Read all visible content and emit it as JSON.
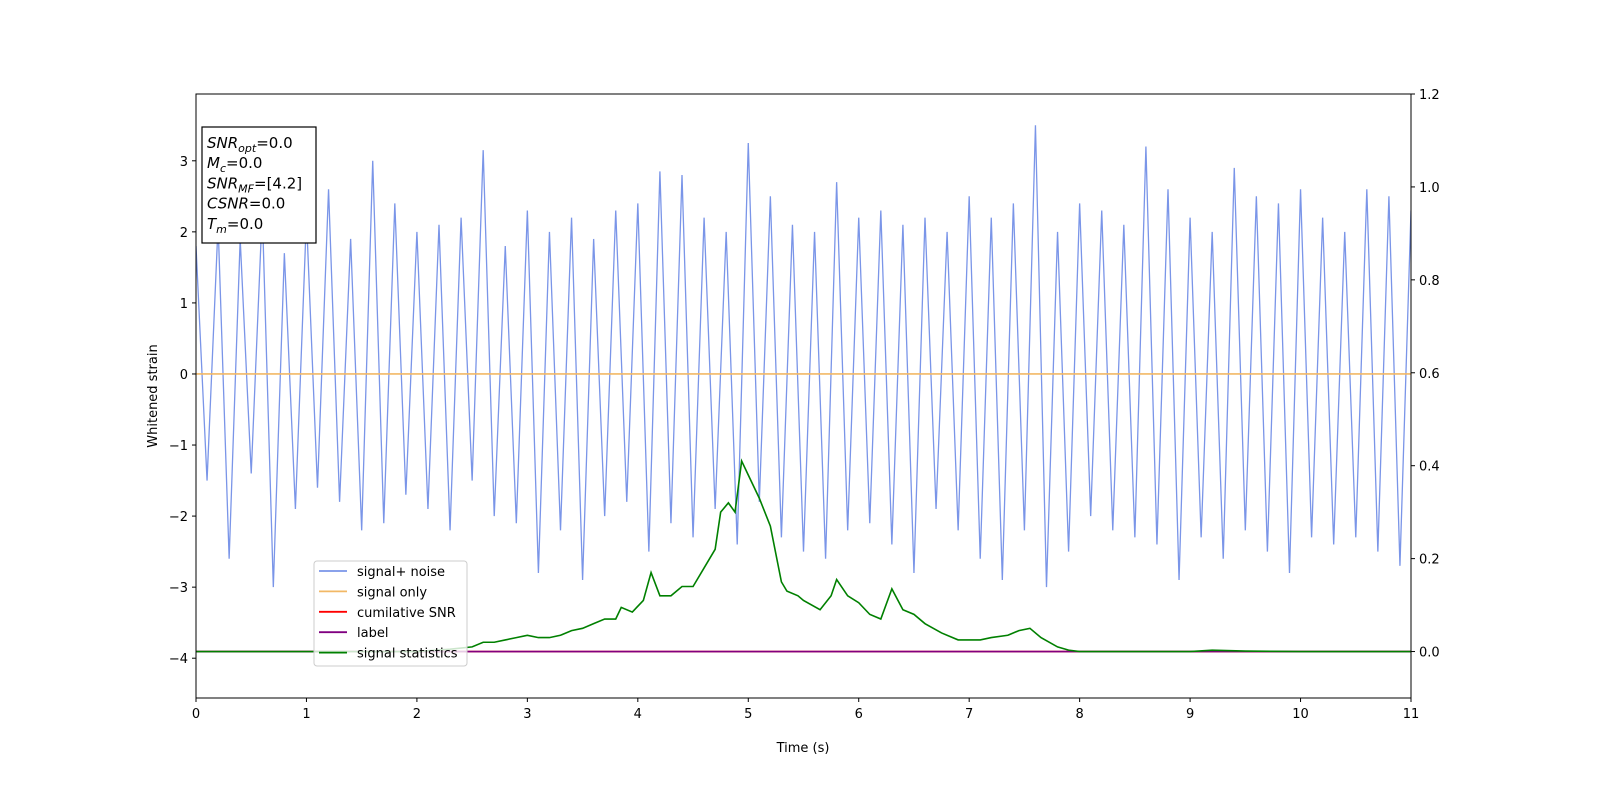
{
  "chart_data": {
    "type": "line",
    "xlabel": "Time (s)",
    "ylabel": "Whitened strain",
    "xlim": [
      0,
      11
    ],
    "xticks": [
      0,
      1,
      2,
      3,
      4,
      5,
      6,
      7,
      8,
      9,
      10,
      11
    ],
    "ylim": [
      -4.56,
      3.94
    ],
    "yticks": [
      {
        "value": -4,
        "label": "−4"
      },
      {
        "value": -3,
        "label": "−3"
      },
      {
        "value": -2,
        "label": "−2"
      },
      {
        "value": -1,
        "label": "−1"
      },
      0,
      1,
      2,
      3
    ],
    "y2lim": [
      -0.1,
      1.2
    ],
    "y2ticks": [
      {
        "value": 0,
        "label": "0.0"
      },
      {
        "value": 0.2,
        "label": "0.2"
      },
      {
        "value": 0.4,
        "label": "0.4"
      },
      {
        "value": 0.6,
        "label": "0.6"
      },
      {
        "value": 0.8,
        "label": "0.8"
      },
      {
        "value": 1,
        "label": "1.0"
      },
      {
        "value": 1.2,
        "label": "1.2"
      }
    ],
    "legend": "lower left",
    "annotations": [
      {
        "main": "SNR",
        "sub": "opt",
        "rest": "=0.0"
      },
      {
        "main": "M",
        "sub": "c",
        "rest": "=0.0"
      },
      {
        "main": "SNR",
        "sub": "MF",
        "rest": "=[4.2]"
      },
      {
        "main": "CSNR",
        "sub": "",
        "rest": "=0.0"
      },
      {
        "main": "T",
        "sub": "m",
        "rest": "=0.0"
      }
    ],
    "series": [
      {
        "name": "signal+ noise",
        "color": "#7a95e8",
        "axis": "y",
        "x": [
          0,
          0.1,
          0.2,
          0.3,
          0.4,
          0.5,
          0.6,
          0.7,
          0.8,
          0.9,
          1,
          1.1,
          1.2,
          1.3,
          1.4,
          1.5,
          1.6,
          1.7,
          1.8,
          1.9,
          2,
          2.1,
          2.2,
          2.3,
          2.4,
          2.5,
          2.6,
          2.7,
          2.8,
          2.9,
          3,
          3.1,
          3.2,
          3.3,
          3.4,
          3.5,
          3.6,
          3.7,
          3.8,
          3.9,
          4,
          4.1,
          4.2,
          4.3,
          4.4,
          4.5,
          4.6,
          4.7,
          4.8,
          4.9,
          5,
          5.1,
          5.2,
          5.3,
          5.4,
          5.5,
          5.6,
          5.7,
          5.8,
          5.9,
          6,
          6.1,
          6.2,
          6.3,
          6.4,
          6.5,
          6.6,
          6.7,
          6.8,
          6.9,
          7,
          7.1,
          7.2,
          7.3,
          7.4,
          7.5,
          7.6,
          7.7,
          7.8,
          7.9,
          8,
          8.1,
          8.2,
          8.3,
          8.4,
          8.5,
          8.6,
          8.7,
          8.8,
          8.9,
          9,
          9.1,
          9.2,
          9.3,
          9.4,
          9.5,
          9.6,
          9.7,
          9.8,
          9.9,
          10,
          10.1,
          10.2,
          10.3,
          10.4,
          10.5,
          10.6,
          10.7,
          10.8,
          10.9,
          11
        ],
        "values": [
          1.8,
          -1.5,
          2.1,
          -2.6,
          1.9,
          -1.4,
          2.3,
          -3.0,
          1.7,
          -1.9,
          2.2,
          -1.6,
          2.6,
          -1.8,
          1.9,
          -2.2,
          3.0,
          -2.1,
          2.4,
          -1.7,
          2.0,
          -1.9,
          2.1,
          -2.2,
          2.2,
          -1.5,
          3.15,
          -2.0,
          1.8,
          -2.1,
          2.3,
          -2.8,
          2.0,
          -2.2,
          2.2,
          -2.9,
          1.9,
          -2.0,
          2.3,
          -1.8,
          2.4,
          -2.5,
          2.85,
          -2.1,
          2.8,
          -2.3,
          2.2,
          -1.9,
          2.0,
          -2.4,
          3.25,
          -1.8,
          2.5,
          -2.3,
          2.1,
          -2.5,
          2.0,
          -2.6,
          2.7,
          -2.2,
          2.2,
          -2.1,
          2.3,
          -2.4,
          2.1,
          -2.8,
          2.2,
          -1.9,
          2.0,
          -2.2,
          2.5,
          -2.6,
          2.2,
          -2.9,
          2.4,
          -2.2,
          3.5,
          -3.0,
          2.0,
          -2.5,
          2.4,
          -2.0,
          2.3,
          -2.2,
          2.1,
          -2.3,
          3.2,
          -2.4,
          2.6,
          -2.9,
          2.2,
          -2.3,
          2.0,
          -2.6,
          2.9,
          -2.2,
          2.5,
          -2.5,
          2.4,
          -2.8,
          2.6,
          -2.3,
          2.2,
          -2.4,
          2.0,
          -2.3,
          2.6,
          -2.5,
          2.5,
          -2.7,
          2.3
        ]
      },
      {
        "name": "signal only",
        "color": "#f2b866",
        "axis": "y",
        "x": [
          0,
          11
        ],
        "values": [
          0,
          0
        ]
      },
      {
        "name": "cumilative SNR",
        "color": "red",
        "axis": "y2",
        "x": [
          0,
          11
        ],
        "values": [
          0,
          0
        ]
      },
      {
        "name": "label",
        "color": "purple",
        "axis": "y2",
        "x": [
          0,
          11
        ],
        "values": [
          0,
          0
        ]
      },
      {
        "name": "signal statistics",
        "color": "green",
        "axis": "y2",
        "x": [
          0,
          0.5,
          1,
          1.5,
          2,
          2.3,
          2.5,
          2.6,
          2.7,
          2.8,
          2.9,
          3,
          3.1,
          3.2,
          3.3,
          3.4,
          3.5,
          3.6,
          3.7,
          3.8,
          3.85,
          3.95,
          4.05,
          4.12,
          4.2,
          4.3,
          4.4,
          4.5,
          4.6,
          4.7,
          4.75,
          4.82,
          4.88,
          4.94,
          5,
          5.1,
          5.2,
          5.3,
          5.35,
          5.45,
          5.5,
          5.65,
          5.75,
          5.8,
          5.9,
          6,
          6.1,
          6.2,
          6.3,
          6.4,
          6.5,
          6.6,
          6.75,
          6.9,
          7.1,
          7.2,
          7.35,
          7.45,
          7.55,
          7.65,
          7.8,
          7.9,
          8,
          9,
          9.2,
          9.5,
          10,
          11
        ],
        "values": [
          0,
          0,
          0,
          0,
          0,
          0.005,
          0.01,
          0.02,
          0.02,
          0.025,
          0.03,
          0.035,
          0.03,
          0.03,
          0.035,
          0.045,
          0.05,
          0.06,
          0.07,
          0.07,
          0.095,
          0.085,
          0.11,
          0.17,
          0.12,
          0.12,
          0.14,
          0.14,
          0.18,
          0.22,
          0.3,
          0.32,
          0.3,
          0.41,
          0.38,
          0.33,
          0.27,
          0.15,
          0.13,
          0.12,
          0.11,
          0.09,
          0.12,
          0.155,
          0.12,
          0.105,
          0.08,
          0.07,
          0.135,
          0.09,
          0.08,
          0.06,
          0.04,
          0.025,
          0.025,
          0.03,
          0.035,
          0.045,
          0.05,
          0.03,
          0.01,
          0.003,
          0,
          0,
          0.003,
          0.001,
          0,
          0
        ]
      }
    ]
  }
}
